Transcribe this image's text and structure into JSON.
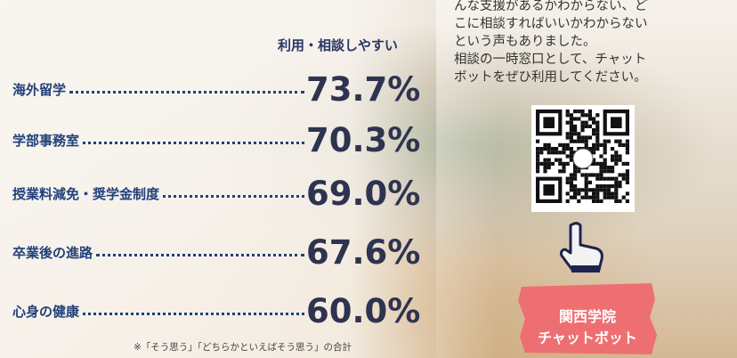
{
  "header": "利用・相談しやすい",
  "rows": [
    {
      "label": "海外留学",
      "value": "73.7%"
    },
    {
      "label": "学部事務室",
      "value": "70.3%"
    },
    {
      "label": "授業料減免・奨学金制度",
      "value": "69.0%"
    },
    {
      "label": "卒業後の進路",
      "value": "67.6%"
    },
    {
      "label": "心身の健康",
      "value": "60.0%"
    }
  ],
  "footnote": "※「そう思う」「どちらかといえばそう思う」の合計",
  "message": [
    "んな支援があるかわからない、ど",
    "こに相談すればいいかわからない",
    "という声もありました。",
    "相談の一時窓口として、チャット",
    "ボットをぜひ利用してください。"
  ],
  "badge": [
    "関西学院",
    "チャットボット"
  ]
}
